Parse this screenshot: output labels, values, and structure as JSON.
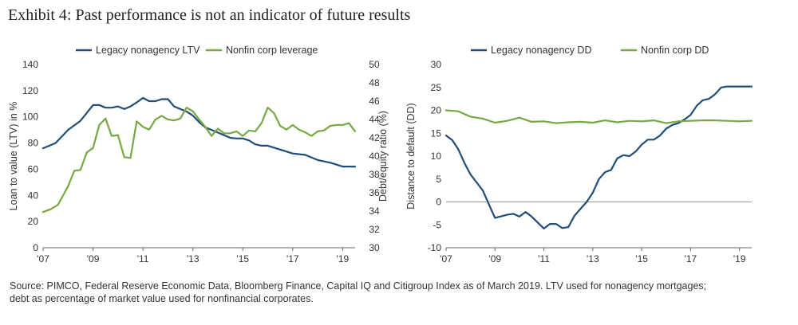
{
  "exhibit_title": "Exhibit 4: Past performance is not an indicator of future results",
  "source": "Source: PIMCO, Federal Reserve Economic Data, Bloomberg Finance, Capital IQ and Citigroup Index as of March 2019. LTV used for nonagency mortgages;",
  "source_line2": "debt as percentage of market value used for nonfinancial corporates.",
  "colors": {
    "blue": "#1F4E79",
    "green": "#76A844",
    "axis": "#666666"
  },
  "chart_data": [
    {
      "type": "line",
      "title": "",
      "xlabel": "",
      "ylabel": "Loan to value (LTV) in %",
      "y2label": "Debt/equity ratio (%)",
      "xlim": [
        2007,
        2019.5
      ],
      "ylim": [
        0,
        140
      ],
      "y2lim": [
        30,
        50
      ],
      "x_ticks": [
        2007,
        2009,
        2011,
        2013,
        2015,
        2017,
        2019
      ],
      "x_tick_labels": [
        "'07",
        "'09",
        "'11",
        "'13",
        "'15",
        "'17",
        "'19"
      ],
      "y_ticks": [
        "0",
        "20",
        "40",
        "60",
        "80",
        "100",
        "120",
        "140"
      ],
      "y2_ticks": [
        "30",
        "32",
        "34",
        "36",
        "38",
        "40",
        "42",
        "44",
        "46",
        "48",
        "50"
      ],
      "series": [
        {
          "name": "Legacy nonagency LTV",
          "axis": "left",
          "color": "#1F4E79",
          "x": [
            2007,
            2007.5,
            2008,
            2008.5,
            2008.75,
            2009,
            2009.25,
            2009.5,
            2009.75,
            2010,
            2010.25,
            2010.5,
            2010.75,
            2011,
            2011.25,
            2011.5,
            2011.75,
            2012,
            2012.25,
            2012.5,
            2012.75,
            2013,
            2013.25,
            2013.5,
            2013.75,
            2014,
            2014.25,
            2014.5,
            2014.75,
            2015,
            2015.25,
            2015.5,
            2015.75,
            2016,
            2016.5,
            2017,
            2017.5,
            2018,
            2018.5,
            2019,
            2019.5
          ],
          "values": [
            76,
            80,
            90,
            97,
            103,
            109,
            109,
            107,
            107,
            108,
            106,
            108,
            111,
            114.5,
            112,
            112,
            113.5,
            113.5,
            108,
            106,
            104,
            101,
            96,
            92,
            90,
            88,
            86,
            84,
            83.5,
            83.5,
            82,
            79,
            78,
            78,
            75,
            72,
            71,
            67,
            65,
            62,
            62
          ]
        },
        {
          "name": "Nonfin corp leverage",
          "axis": "right",
          "color": "#76A844",
          "x": [
            2007,
            2007.3,
            2007.6,
            2008,
            2008.25,
            2008.5,
            2008.75,
            2009,
            2009.25,
            2009.5,
            2009.75,
            2010,
            2010.25,
            2010.5,
            2010.75,
            2011,
            2011.25,
            2011.5,
            2011.75,
            2012,
            2012.25,
            2012.5,
            2012.75,
            2013,
            2013.25,
            2013.5,
            2013.75,
            2014,
            2014.25,
            2014.5,
            2014.75,
            2015,
            2015.25,
            2015.5,
            2015.75,
            2016,
            2016.25,
            2016.5,
            2016.75,
            2017,
            2017.25,
            2017.5,
            2017.75,
            2018,
            2018.25,
            2018.5,
            2018.75,
            2019,
            2019.25,
            2019.5
          ],
          "values": [
            33.9,
            34.2,
            34.7,
            36.7,
            38.4,
            38.5,
            40.4,
            40.9,
            43.4,
            44.1,
            42.2,
            42.3,
            39.9,
            39.8,
            43.8,
            43.2,
            42.9,
            44.0,
            44.4,
            44.0,
            43.9,
            44.1,
            45.3,
            44.9,
            44.0,
            43.2,
            42.2,
            43.0,
            42.5,
            42.5,
            42.7,
            42.2,
            42.8,
            42.7,
            43.6,
            45.3,
            44.7,
            43.3,
            42.9,
            43.4,
            42.9,
            42.6,
            42.2,
            42.7,
            42.8,
            43.3,
            43.4,
            43.4,
            43.6,
            42.7
          ]
        }
      ]
    },
    {
      "type": "line",
      "title": "",
      "xlabel": "",
      "ylabel": "Distance to default (DD)",
      "xlim": [
        2007,
        2019.5
      ],
      "ylim": [
        -10,
        30
      ],
      "x_ticks": [
        2007,
        2009,
        2011,
        2013,
        2015,
        2017,
        2019
      ],
      "x_tick_labels": [
        "'07",
        "'09",
        "'11",
        "'13",
        "'15",
        "'17",
        "'19"
      ],
      "y_ticks": [
        "-10",
        "-5",
        "0",
        "5",
        "10",
        "15",
        "20",
        "25",
        "30"
      ],
      "series": [
        {
          "name": "Legacy nonagency DD",
          "color": "#1F4E79",
          "x": [
            2007,
            2007.25,
            2007.5,
            2007.75,
            2008,
            2008.5,
            2008.75,
            2009,
            2009.5,
            2009.75,
            2010,
            2010.25,
            2010.5,
            2010.75,
            2011,
            2011.25,
            2011.5,
            2011.75,
            2012,
            2012.25,
            2012.5,
            2012.75,
            2013,
            2013.25,
            2013.5,
            2013.75,
            2014,
            2014.25,
            2014.5,
            2014.75,
            2015,
            2015.25,
            2015.5,
            2015.75,
            2016,
            2016.25,
            2016.5,
            2016.75,
            2017,
            2017.25,
            2017.5,
            2017.75,
            2018,
            2018.25,
            2018.5,
            2018.75,
            2019,
            2019.25,
            2019.5
          ],
          "values": [
            14.5,
            13.5,
            11.5,
            8.5,
            6,
            2.5,
            -0.5,
            -3.5,
            -2.8,
            -2.6,
            -3.2,
            -2.2,
            -3.2,
            -4.5,
            -5.8,
            -4.8,
            -4.8,
            -5.7,
            -5.5,
            -3,
            -1.5,
            0,
            2,
            5,
            6.5,
            7,
            9.5,
            10.2,
            10,
            11,
            12.5,
            13.6,
            13.6,
            14.5,
            16,
            16.8,
            17.2,
            18,
            19,
            21,
            22.2,
            22.5,
            23.5,
            25,
            25.2,
            25.2,
            25.2,
            25.2,
            25.2
          ]
        },
        {
          "name": "Nonfin corp DD",
          "color": "#76A844",
          "x": [
            2007,
            2007.5,
            2008,
            2008.5,
            2009,
            2009.5,
            2010,
            2010.5,
            2011,
            2011.5,
            2012,
            2012.5,
            2013,
            2013.5,
            2014,
            2014.5,
            2015,
            2015.5,
            2016,
            2016.5,
            2017,
            2017.5,
            2018,
            2018.5,
            2019,
            2019.5
          ],
          "values": [
            20,
            19.8,
            18.6,
            18.2,
            17.3,
            17.7,
            18.4,
            17.5,
            17.6,
            17.2,
            17.4,
            17.5,
            17.3,
            17.8,
            17.4,
            17.7,
            17.6,
            17.8,
            17.2,
            17.6,
            17.7,
            17.8,
            17.8,
            17.7,
            17.6,
            17.7
          ]
        }
      ]
    }
  ]
}
